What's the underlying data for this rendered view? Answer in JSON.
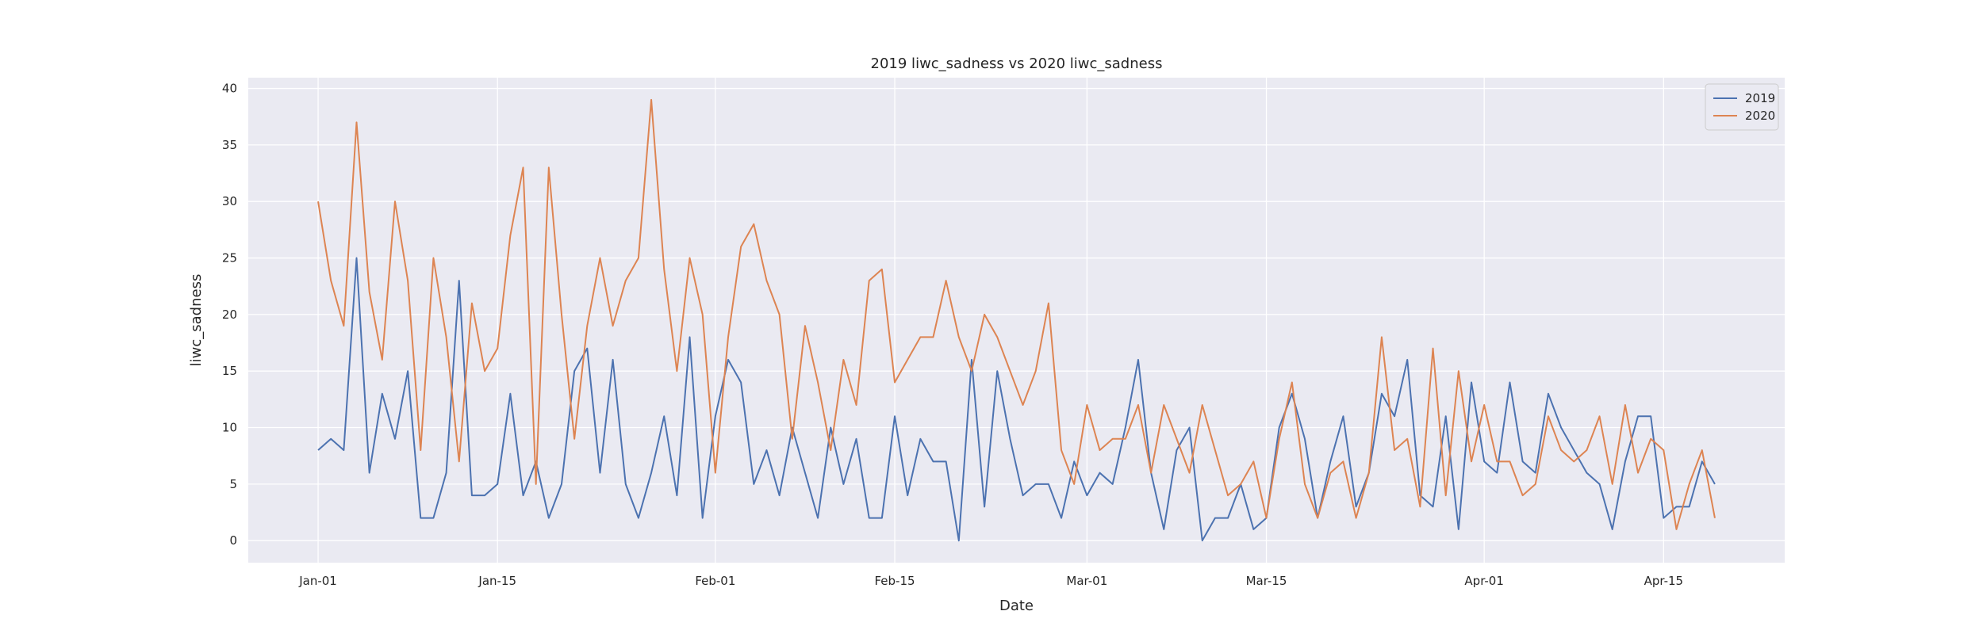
{
  "chart_data": {
    "type": "line",
    "title": "2019 liwc_sadness vs 2020 liwc_sadness",
    "xlabel": "Date",
    "ylabel": "liwc_sadness",
    "x_start": "01-01",
    "x_ticks": [
      "Jan-01",
      "Jan-15",
      "Feb-01",
      "Feb-15",
      "Mar-01",
      "Mar-15",
      "Apr-01",
      "Apr-15"
    ],
    "y_ticks": [
      0,
      5,
      10,
      15,
      20,
      25,
      30,
      35,
      40
    ],
    "ylim": [
      -1.95,
      40.95
    ],
    "grid": true,
    "legend_position": "top-right",
    "series": [
      {
        "name": "2019",
        "color": "#4c72b0",
        "values": [
          8,
          9,
          8,
          25,
          6,
          13,
          9,
          15,
          2,
          2,
          6,
          23,
          4,
          4,
          5,
          13,
          4,
          7,
          2,
          5,
          15,
          17,
          6,
          16,
          5,
          2,
          6,
          11,
          4,
          18,
          2,
          11,
          16,
          14,
          5,
          8,
          4,
          10,
          6,
          2,
          10,
          5,
          9,
          2,
          2,
          11,
          4,
          9,
          7,
          7,
          0,
          16,
          3,
          15,
          9,
          4,
          5,
          5,
          2,
          7,
          4,
          6,
          5,
          10,
          16,
          6,
          1,
          8,
          10,
          0,
          2,
          2,
          5,
          1,
          2,
          10,
          13,
          9,
          2,
          7,
          11,
          3,
          6,
          13,
          11,
          16,
          4,
          3,
          11,
          1,
          14,
          7,
          6,
          14,
          7,
          6,
          13,
          10,
          8,
          6,
          5,
          1,
          7,
          11,
          11,
          2,
          3,
          3,
          7,
          5
        ]
      },
      {
        "name": "2020",
        "color": "#dd8452",
        "values": [
          30,
          23,
          19,
          37,
          22,
          16,
          30,
          23,
          8,
          25,
          18,
          7,
          21,
          15,
          17,
          27,
          33,
          5,
          33,
          20,
          9,
          19,
          25,
          19,
          23,
          25,
          39,
          24,
          15,
          25,
          20,
          6,
          18,
          26,
          28,
          23,
          20,
          9,
          19,
          14,
          8,
          16,
          12,
          23,
          24,
          14,
          16,
          18,
          18,
          23,
          18,
          15,
          20,
          18,
          15,
          12,
          15,
          21,
          8,
          5,
          12,
          8,
          9,
          9,
          12,
          6,
          12,
          9,
          6,
          12,
          8,
          4,
          5,
          7,
          2,
          9,
          14,
          5,
          2,
          6,
          7,
          2,
          6,
          18,
          8,
          9,
          3,
          17,
          4,
          15,
          7,
          12,
          7,
          7,
          4,
          5,
          11,
          8,
          7,
          8,
          11,
          5,
          12,
          6,
          9,
          8,
          1,
          5,
          8,
          2
        ]
      }
    ]
  }
}
